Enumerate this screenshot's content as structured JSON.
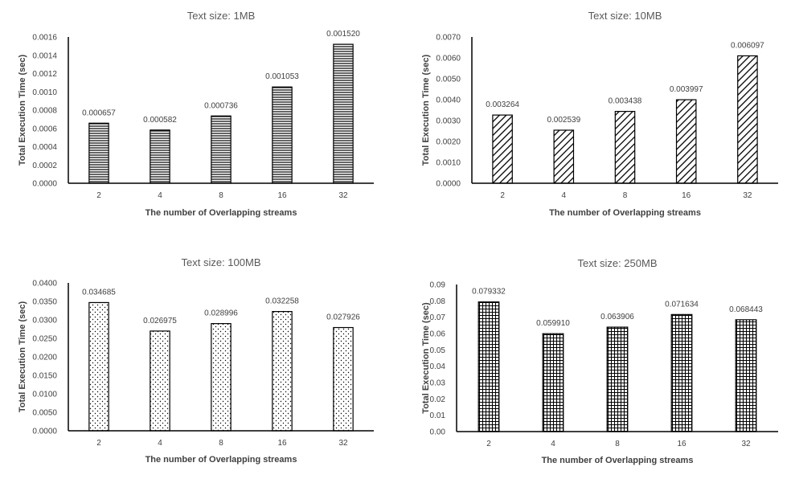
{
  "chart_data": [
    {
      "type": "bar",
      "title": "Text size: 1MB",
      "xlabel": "The number of Overlapping streams",
      "ylabel": "Total Execution Time (sec)",
      "categories": [
        "2",
        "4",
        "8",
        "16",
        "32"
      ],
      "values": [
        0.000657,
        0.000582,
        0.000736,
        0.001053,
        0.00152
      ],
      "value_labels": [
        "0.000657",
        "0.000582",
        "0.000736",
        "0.001053",
        "0.001520"
      ],
      "ylim": [
        0,
        0.0016
      ],
      "yticks": [
        "0.0000",
        "0.0002",
        "0.0004",
        "0.0006",
        "0.0008",
        "0.0010",
        "0.0012",
        "0.0014",
        "0.0016"
      ],
      "grid": false,
      "bar_pattern": "horizontal-lines"
    },
    {
      "type": "bar",
      "title": "Text size: 10MB",
      "xlabel": "The number of Overlapping streams",
      "ylabel": "Total Execution Time (sec)",
      "categories": [
        "2",
        "4",
        "8",
        "16",
        "32"
      ],
      "values": [
        0.003264,
        0.002539,
        0.003438,
        0.003997,
        0.006097
      ],
      "value_labels": [
        "0.003264",
        "0.002539",
        "0.003438",
        "0.003997",
        "0.006097"
      ],
      "ylim": [
        0,
        0.007
      ],
      "yticks": [
        "0.0000",
        "0.0010",
        "0.0020",
        "0.0030",
        "0.0040",
        "0.0050",
        "0.0060",
        "0.0070"
      ],
      "grid": false,
      "bar_pattern": "diagonal-lines"
    },
    {
      "type": "bar",
      "title": "Text size: 100MB",
      "xlabel": "The number of Overlapping streams",
      "ylabel": "Total Execution Time (sec)",
      "categories": [
        "2",
        "4",
        "8",
        "16",
        "32"
      ],
      "values": [
        0.034685,
        0.026975,
        0.028996,
        0.032258,
        0.027926
      ],
      "value_labels": [
        "0.034685",
        "0.026975",
        "0.028996",
        "0.032258",
        "0.027926"
      ],
      "ylim": [
        0,
        0.04
      ],
      "yticks": [
        "0.0000",
        "0.0050",
        "0.0100",
        "0.0150",
        "0.0200",
        "0.0250",
        "0.0300",
        "0.0350",
        "0.0400"
      ],
      "grid": false,
      "bar_pattern": "dots"
    },
    {
      "type": "bar",
      "title": "Text size: 250MB",
      "xlabel": "The number of Overlapping streams",
      "ylabel": "Total Execution Time (sec)",
      "categories": [
        "2",
        "4",
        "8",
        "16",
        "32"
      ],
      "values": [
        0.079332,
        0.05991,
        0.063906,
        0.071634,
        0.068443
      ],
      "value_labels": [
        "0.079332",
        "0.059910",
        "0.063906",
        "0.071634",
        "0.068443"
      ],
      "ylim": [
        0,
        0.09
      ],
      "yticks": [
        "0.00",
        "0.01",
        "0.02",
        "0.03",
        "0.04",
        "0.05",
        "0.06",
        "0.07",
        "0.08",
        "0.09"
      ],
      "grid": false,
      "bar_pattern": "grid"
    }
  ]
}
